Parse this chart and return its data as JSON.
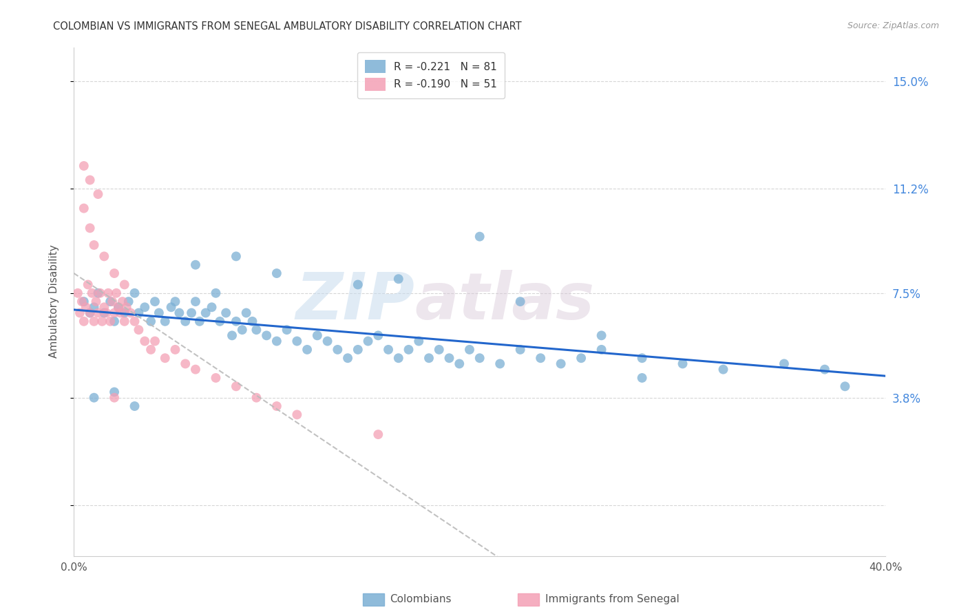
{
  "title": "COLOMBIAN VS IMMIGRANTS FROM SENEGAL AMBULATORY DISABILITY CORRELATION CHART",
  "source": "Source: ZipAtlas.com",
  "ylabel": "Ambulatory Disability",
  "yticks": [
    0.0,
    0.038,
    0.075,
    0.112,
    0.15
  ],
  "ytick_labels": [
    "",
    "3.8%",
    "7.5%",
    "11.2%",
    "15.0%"
  ],
  "xticks": [
    0.0,
    0.08,
    0.16,
    0.24,
    0.32,
    0.4
  ],
  "xtick_labels": [
    "0.0%",
    "",
    "",
    "",
    "",
    "40.0%"
  ],
  "xmin": 0.0,
  "xmax": 0.4,
  "ymin": -0.018,
  "ymax": 0.162,
  "legend_r1": "R = -0.221   N = 81",
  "legend_r2": "R = -0.190   N = 51",
  "colombians_color": "#7BAFD4",
  "senegal_color": "#F4A0B5",
  "trendline_colombians_color": "#2266CC",
  "trendline_senegal_color": "#BBBBBB",
  "watermark_zip": "ZIP",
  "watermark_atlas": "atlas",
  "colombians_x": [
    0.005,
    0.008,
    0.01,
    0.012,
    0.015,
    0.018,
    0.02,
    0.022,
    0.025,
    0.027,
    0.03,
    0.032,
    0.035,
    0.038,
    0.04,
    0.042,
    0.045,
    0.048,
    0.05,
    0.052,
    0.055,
    0.058,
    0.06,
    0.062,
    0.065,
    0.068,
    0.07,
    0.072,
    0.075,
    0.078,
    0.08,
    0.083,
    0.085,
    0.088,
    0.09,
    0.095,
    0.1,
    0.105,
    0.11,
    0.115,
    0.12,
    0.125,
    0.13,
    0.135,
    0.14,
    0.145,
    0.15,
    0.155,
    0.16,
    0.165,
    0.17,
    0.175,
    0.18,
    0.185,
    0.19,
    0.195,
    0.2,
    0.21,
    0.22,
    0.23,
    0.24,
    0.25,
    0.26,
    0.28,
    0.3,
    0.32,
    0.35,
    0.37,
    0.01,
    0.02,
    0.03,
    0.06,
    0.08,
    0.1,
    0.14,
    0.16,
    0.2,
    0.22,
    0.26,
    0.28,
    0.38
  ],
  "colombians_y": [
    0.072,
    0.068,
    0.07,
    0.075,
    0.068,
    0.072,
    0.065,
    0.07,
    0.068,
    0.072,
    0.075,
    0.068,
    0.07,
    0.065,
    0.072,
    0.068,
    0.065,
    0.07,
    0.072,
    0.068,
    0.065,
    0.068,
    0.072,
    0.065,
    0.068,
    0.07,
    0.075,
    0.065,
    0.068,
    0.06,
    0.065,
    0.062,
    0.068,
    0.065,
    0.062,
    0.06,
    0.058,
    0.062,
    0.058,
    0.055,
    0.06,
    0.058,
    0.055,
    0.052,
    0.055,
    0.058,
    0.06,
    0.055,
    0.052,
    0.055,
    0.058,
    0.052,
    0.055,
    0.052,
    0.05,
    0.055,
    0.052,
    0.05,
    0.055,
    0.052,
    0.05,
    0.052,
    0.055,
    0.052,
    0.05,
    0.048,
    0.05,
    0.048,
    0.038,
    0.04,
    0.035,
    0.085,
    0.088,
    0.082,
    0.078,
    0.08,
    0.095,
    0.072,
    0.06,
    0.045,
    0.042
  ],
  "senegal_x": [
    0.002,
    0.003,
    0.004,
    0.005,
    0.006,
    0.007,
    0.008,
    0.009,
    0.01,
    0.011,
    0.012,
    0.013,
    0.014,
    0.015,
    0.016,
    0.017,
    0.018,
    0.019,
    0.02,
    0.021,
    0.022,
    0.023,
    0.024,
    0.025,
    0.026,
    0.028,
    0.03,
    0.032,
    0.035,
    0.038,
    0.04,
    0.045,
    0.05,
    0.055,
    0.06,
    0.07,
    0.08,
    0.09,
    0.1,
    0.11,
    0.005,
    0.008,
    0.01,
    0.015,
    0.02,
    0.025,
    0.005,
    0.008,
    0.012,
    0.02,
    0.15
  ],
  "senegal_y": [
    0.075,
    0.068,
    0.072,
    0.065,
    0.07,
    0.078,
    0.068,
    0.075,
    0.065,
    0.072,
    0.068,
    0.075,
    0.065,
    0.07,
    0.068,
    0.075,
    0.065,
    0.072,
    0.068,
    0.075,
    0.07,
    0.068,
    0.072,
    0.065,
    0.07,
    0.068,
    0.065,
    0.062,
    0.058,
    0.055,
    0.058,
    0.052,
    0.055,
    0.05,
    0.048,
    0.045,
    0.042,
    0.038,
    0.035,
    0.032,
    0.105,
    0.098,
    0.092,
    0.088,
    0.082,
    0.078,
    0.12,
    0.115,
    0.11,
    0.038,
    0.025
  ]
}
